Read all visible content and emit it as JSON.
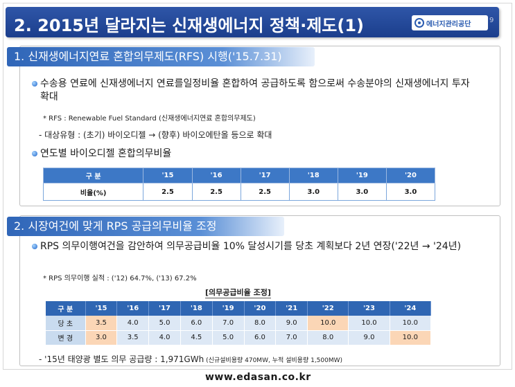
{
  "title": "2. 2015년 달라지는 신재생에너지 정책·제도(1)",
  "logo_text": "에너지관리공단",
  "page_number": "9",
  "section1": {
    "heading": "1. 신재생에너지연료 혼합의무제도(RFS) 시행('15.7.31)",
    "bullet1": "수송용 연료에 신재생에너지 연료를일정비율 혼합하여 공급하도록 함으로써 수송분야의 신재생에너지 투자 확대",
    "note": "* RFS : Renewable Fuel Standard (신재생에너지연료 혼합의무제도)",
    "dash": "- 대상유형 : (초기) 바이오디젤 → (향후) 바이오에탄올 등으로 확대",
    "bullet2": "연도별 바이오디젤 혼합의무비율",
    "table": {
      "header": [
        "구 분",
        "'15",
        "'16",
        "'17",
        "'18",
        "'19",
        "'20"
      ],
      "row_label": "비율(%)",
      "values": [
        "2.5",
        "2.5",
        "2.5",
        "3.0",
        "3.0",
        "3.0"
      ]
    }
  },
  "section2": {
    "heading": "2. 시장여건에 맞게 RPS 공급의무비율 조정",
    "bullet1": "RPS 의무이행여건을 감안하여 의무공급비율 10% 달성시기를 당초 계획보다 2년 연장('22년 → '24년)",
    "note": "* RPS 의무이행 실적 : ('12) 64.7%, ('13) 67.2%",
    "table_caption": "[의무공급비율 조정]",
    "table": {
      "header": [
        "구 분",
        "'15",
        "'16",
        "'17",
        "'18",
        "'19",
        "'20",
        "'21",
        "'22",
        "'23",
        "'24"
      ],
      "rows": [
        {
          "label": "당 초",
          "values": [
            "3.5",
            "4.0",
            "5.0",
            "6.0",
            "7.0",
            "8.0",
            "9.0",
            "10.0",
            "10.0",
            "10.0"
          ]
        },
        {
          "label": "변 경",
          "values": [
            "3.0",
            "3.5",
            "4.0",
            "4.5",
            "5.0",
            "6.0",
            "7.0",
            "8.0",
            "9.0",
            "10.0"
          ]
        }
      ]
    },
    "dash_main": "- '15년 태양광 별도 의무 공급량 : 1,971GWh",
    "dash_sub": " (신규설비용량 470MW, 누적 설비용량 1,500MW)"
  },
  "footer_url": "www.edasan.co.kr",
  "colors": {
    "title_bar": "#1b3e8c",
    "section_head": "#3066b8",
    "table_header": "#3d78c6",
    "highlight": "#fbd6b6"
  }
}
